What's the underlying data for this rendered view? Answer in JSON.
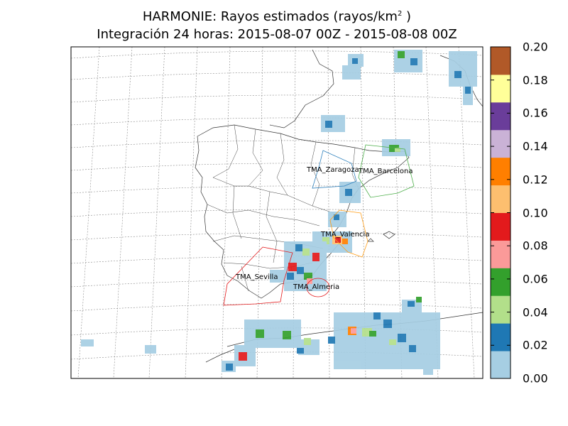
{
  "title": {
    "line1": "HARMONIE: Rayos estimados (rayos/km",
    "line1_sup": "2",
    "line1_end": " )",
    "line2": "Integración 24 horas: 2015-08-07 00Z - 2015-08-08 00Z"
  },
  "colorbar": {
    "ticks": [
      "0.00",
      "0.02",
      "0.04",
      "0.06",
      "0.08",
      "0.10",
      "0.12",
      "0.14",
      "0.16",
      "0.18",
      "0.20"
    ],
    "min": 0.0,
    "max": 0.2,
    "colors": [
      "#a6cee3",
      "#1f78b4",
      "#b2df8a",
      "#33a02c",
      "#fb9a99",
      "#e31a1c",
      "#fdbf6f",
      "#ff7f00",
      "#cab2d6",
      "#6a3d9a",
      "#ffff99",
      "#b15928"
    ]
  },
  "tma_zones": [
    {
      "label": "TMA_Zaragoza",
      "color": "#3182bd"
    },
    {
      "label": "TMA_Barcelona",
      "color": "#4daf4a"
    },
    {
      "label": "TMA_Valencia",
      "color": "#ff9f1a"
    },
    {
      "label": "TMA_Sevilla",
      "color": "#e41a1c"
    },
    {
      "label": "TMA_Almeria",
      "color": "#e41a1c"
    }
  ]
}
